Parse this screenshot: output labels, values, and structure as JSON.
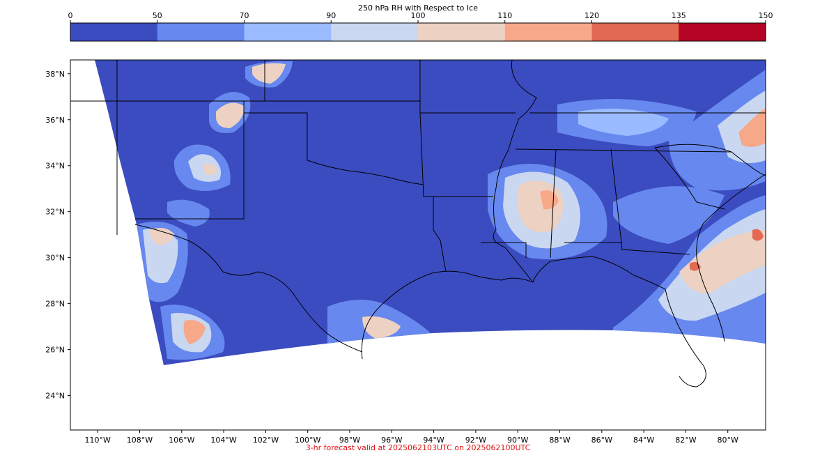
{
  "colorbar": {
    "title": "250 hPa RH with Respect to Ice",
    "ticks": [
      "0",
      "50",
      "70",
      "90",
      "100",
      "110",
      "120",
      "135",
      "150"
    ],
    "colors": [
      "#3b4cc0",
      "#6788ee",
      "#9abbff",
      "#c9d7f0",
      "#edd1c2",
      "#f7a889",
      "#e26952",
      "#b40426"
    ]
  },
  "map": {
    "lat_labels": [
      "38°N",
      "36°N",
      "34°N",
      "32°N",
      "30°N",
      "28°N",
      "26°N",
      "24°N"
    ],
    "lon_labels": [
      "110°W",
      "108°W",
      "106°W",
      "104°W",
      "102°W",
      "100°W",
      "98°W",
      "96°W",
      "94°W",
      "92°W",
      "90°W",
      "88°W",
      "86°W",
      "84°W",
      "82°W",
      "80°W"
    ],
    "extent": {
      "lon_min": -111.3,
      "lon_max": -78.2,
      "lat_min": 22.5,
      "lat_max": 38.6
    },
    "background_field": "#3b4cc0"
  },
  "footer": {
    "text": "3-hr forecast valid at 2025062103UTC on 2025062100UTC",
    "color": "#e01010"
  }
}
